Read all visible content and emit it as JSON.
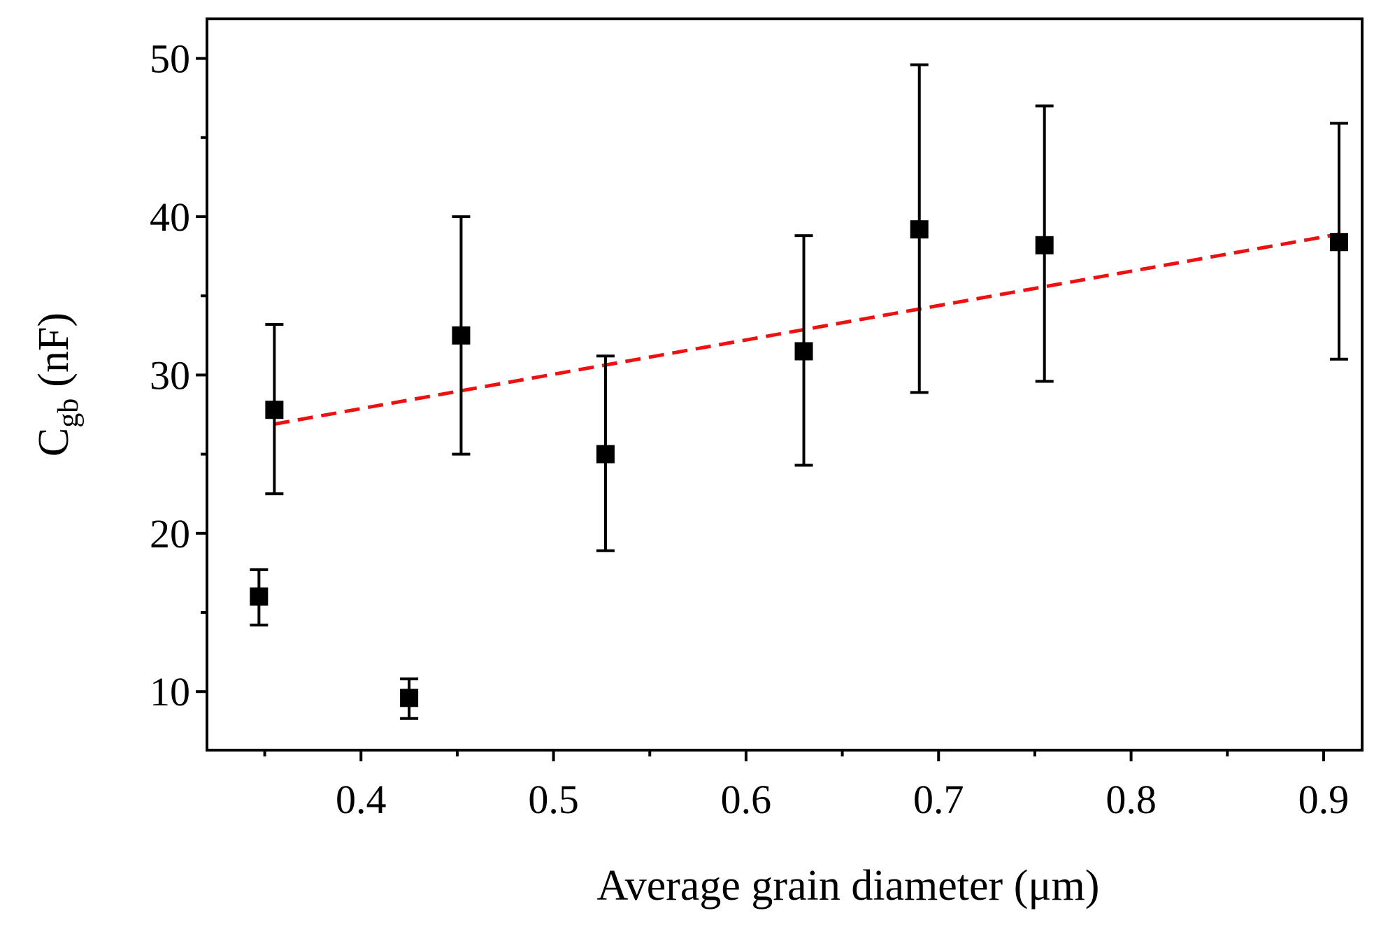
{
  "chart_data": {
    "type": "scatter",
    "title": "",
    "xlabel": "Average grain diameter (μm)",
    "ylabel": {
      "main": "C",
      "subscript": "gb",
      "unit": "(nF)"
    },
    "xlim": [
      0.32,
      0.92
    ],
    "ylim": [
      6.3,
      52.5
    ],
    "x_ticks": [
      0.4,
      0.5,
      0.6,
      0.7,
      0.8,
      0.9
    ],
    "x_tick_labels": [
      "0.4",
      "0.5",
      "0.6",
      "0.7",
      "0.8",
      "0.9"
    ],
    "x_minor_ticks": [
      0.35,
      0.45,
      0.55,
      0.65,
      0.75,
      0.85
    ],
    "y_ticks": [
      10,
      20,
      30,
      40,
      50
    ],
    "y_tick_labels": [
      "10",
      "20",
      "30",
      "40",
      "50"
    ],
    "y_minor_ticks": [
      15,
      25,
      35,
      45
    ],
    "grid": false,
    "series": [
      {
        "name": "data",
        "marker": "square",
        "color": "#000000",
        "points": [
          {
            "x": 0.347,
            "y": 16.0,
            "yerr_low": 14.2,
            "yerr_high": 17.7
          },
          {
            "x": 0.355,
            "y": 27.8,
            "yerr_low": 22.5,
            "yerr_high": 33.2
          },
          {
            "x": 0.425,
            "y": 9.6,
            "yerr_low": 8.3,
            "yerr_high": 10.8
          },
          {
            "x": 0.452,
            "y": 32.5,
            "yerr_low": 25.0,
            "yerr_high": 40.0
          },
          {
            "x": 0.527,
            "y": 25.0,
            "yerr_low": 18.9,
            "yerr_high": 31.2
          },
          {
            "x": 0.63,
            "y": 31.5,
            "yerr_low": 24.3,
            "yerr_high": 38.8
          },
          {
            "x": 0.69,
            "y": 39.2,
            "yerr_low": 28.9,
            "yerr_high": 49.6
          },
          {
            "x": 0.755,
            "y": 38.2,
            "yerr_low": 29.6,
            "yerr_high": 47.0
          },
          {
            "x": 0.908,
            "y": 38.4,
            "yerr_low": 31.0,
            "yerr_high": 45.9
          }
        ]
      },
      {
        "name": "linear fit",
        "type": "line",
        "style": "dashed",
        "color": "#ee1111",
        "x": [
          0.355,
          0.908
        ],
        "y": [
          26.9,
          38.9
        ]
      }
    ]
  }
}
